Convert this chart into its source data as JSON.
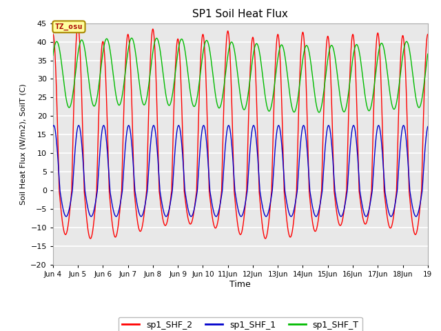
{
  "title": "SP1 Soil Heat Flux",
  "xlabel": "Time",
  "ylabel": "Soil Heat Flux (W/m2), SoilT (C)",
  "ylim": [
    -20,
    45
  ],
  "yticks": [
    -20,
    -15,
    -10,
    -5,
    0,
    5,
    10,
    15,
    20,
    25,
    30,
    35,
    40,
    45
  ],
  "start_day": 4,
  "end_day": 19,
  "n_points": 5000,
  "colors": {
    "shf2": "#FF0000",
    "shf1": "#0000CC",
    "shft": "#00BB00"
  },
  "legend_labels": [
    "sp1_SHF_2",
    "sp1_SHF_1",
    "sp1_SHF_T"
  ],
  "tz_label": "TZ_osu",
  "fig_facecolor": "#FFFFFF",
  "ax_facecolor": "#E8E8E8",
  "grid_color": "#FFFFFF",
  "linewidth": 1.0,
  "x_tick_labels": [
    "Jun 4",
    "Jun 5",
    "Jun 6",
    "Jun 7",
    "Jun 8",
    "Jun 9",
    "Jun 10",
    "11Jun",
    "12Jun",
    "13Jun",
    "14Jun",
    "15Jun",
    "16Jun",
    "17Jun",
    "18Jun",
    "19"
  ]
}
